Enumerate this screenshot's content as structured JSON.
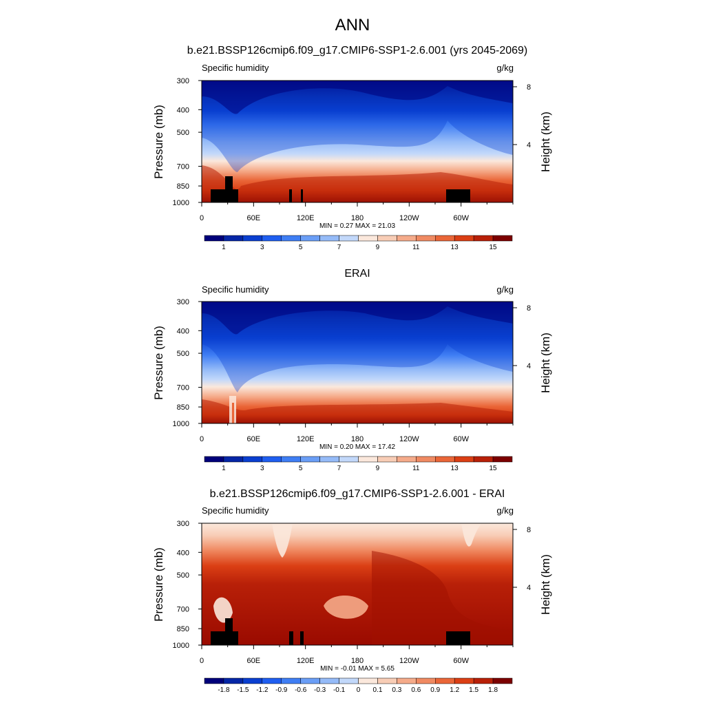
{
  "title": "ANN",
  "chart_data": [
    {
      "type": "heatmap",
      "title": "b.e21.BSSP126cmip6.f09_g17.CMIP6-SSP1-2.6.001 (yrs 2045-2069)",
      "left_label": "Specific humidity",
      "right_label": "g/kg",
      "ylabel": "Pressure (mb)",
      "y2label": "Height (km)",
      "yticks": [
        "300",
        "400",
        "500",
        "700",
        "850",
        "1000"
      ],
      "y2ticks": [
        "8",
        "4"
      ],
      "xticks": [
        "0",
        "60E",
        "120E",
        "180",
        "120W",
        "60W"
      ],
      "stats": "MIN =   0.27  MAX =  21.03",
      "colorbar_labels": [
        "1",
        "3",
        "5",
        "7",
        "9",
        "11",
        "13",
        "15"
      ]
    },
    {
      "type": "heatmap",
      "title": "ERAI",
      "left_label": "Specific humidity",
      "right_label": "g/kg",
      "ylabel": "Pressure (mb)",
      "y2label": "Height (km)",
      "yticks": [
        "300",
        "400",
        "500",
        "700",
        "850",
        "1000"
      ],
      "y2ticks": [
        "8",
        "4"
      ],
      "xticks": [
        "0",
        "60E",
        "120E",
        "180",
        "120W",
        "60W"
      ],
      "stats": "MIN =   0.20  MAX =  17.42",
      "colorbar_labels": [
        "1",
        "3",
        "5",
        "7",
        "9",
        "11",
        "13",
        "15"
      ]
    },
    {
      "type": "heatmap",
      "title": "b.e21.BSSP126cmip6.f09_g17.CMIP6-SSP1-2.6.001 - ERAI",
      "left_label": "Specific humidity",
      "right_label": "g/kg",
      "ylabel": "Pressure (mb)",
      "y2label": "Height (km)",
      "yticks": [
        "300",
        "400",
        "500",
        "700",
        "850",
        "1000"
      ],
      "y2ticks": [
        "8",
        "4"
      ],
      "xticks": [
        "0",
        "60E",
        "120E",
        "180",
        "120W",
        "60W"
      ],
      "stats": "MIN =  -0.01  MAX =   5.65",
      "colorbar_labels": [
        "-1.8",
        "-1.5",
        "-1.2",
        "-0.9",
        "-0.6",
        "-0.3",
        "-0.1",
        "0",
        "0.1",
        "0.3",
        "0.6",
        "0.9",
        "1.2",
        "1.5",
        "1.8"
      ]
    }
  ],
  "colors": {
    "humidity_scale": [
      "#00007a",
      "#0526a6",
      "#0a3fd0",
      "#1f5ef0",
      "#3f7ef4",
      "#6a9ef6",
      "#95bbf8",
      "#c2d8fa",
      "#fbe8dc",
      "#f8cdb6",
      "#f5ab8a",
      "#f08a62",
      "#ea6638",
      "#db3f14",
      "#b82008",
      "#7c0000"
    ],
    "diff_scale": [
      "#00007a",
      "#0526a6",
      "#0a3fd0",
      "#1f5ef0",
      "#3f7ef4",
      "#6a9ef6",
      "#95bbf8",
      "#c2d8fa",
      "#fbe8dc",
      "#f8cdb6",
      "#f5ab8a",
      "#f08a62",
      "#ea6638",
      "#db3f14",
      "#b82008",
      "#7c0000"
    ],
    "terrain": "#000000"
  }
}
